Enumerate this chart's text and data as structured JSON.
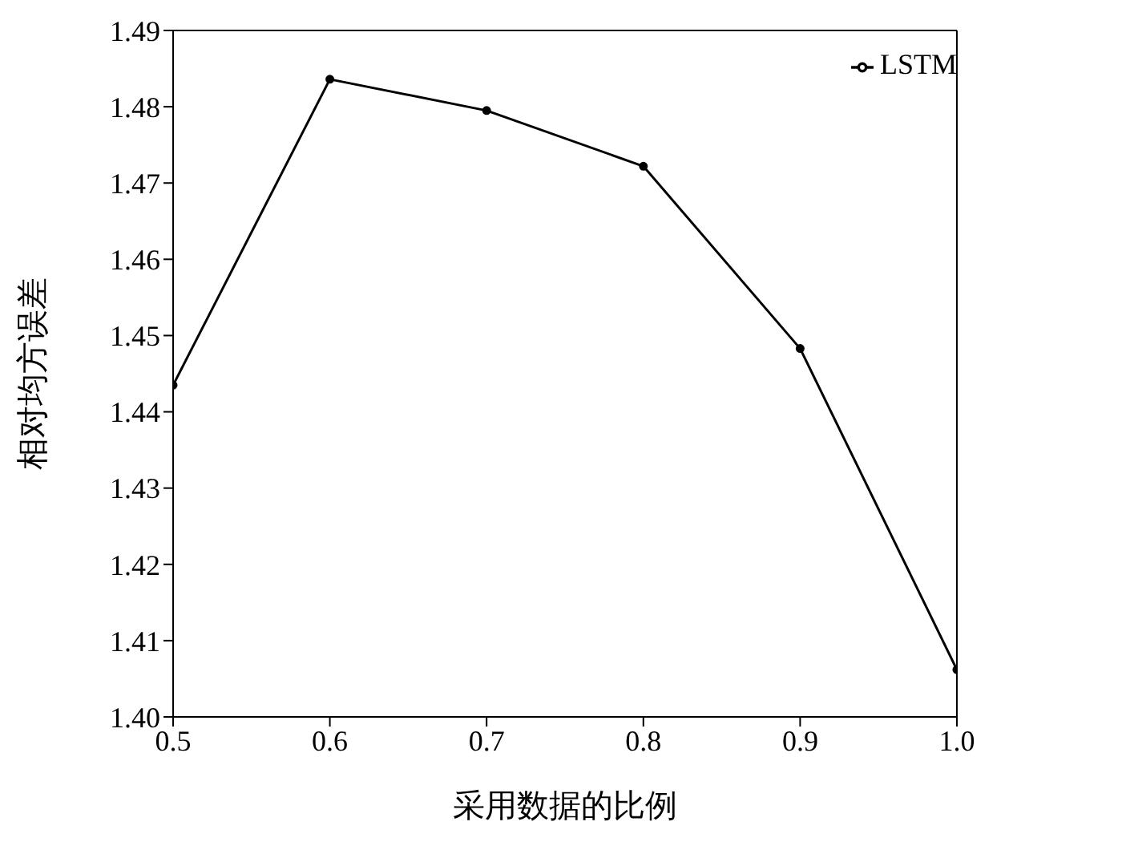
{
  "chart_data": {
    "type": "line",
    "xlabel": "采用数据的比例",
    "ylabel": "相对均方误差",
    "x": [
      0.5,
      0.6,
      0.7,
      0.8,
      0.9,
      1.0
    ],
    "series": [
      {
        "name": "LSTM",
        "color": "#000000",
        "values": [
          1.4435,
          1.4836,
          1.4795,
          1.4722,
          1.4483,
          1.4062
        ]
      }
    ],
    "xlim": [
      0.5,
      1.0
    ],
    "xticks": [
      0.5,
      0.6,
      0.7,
      0.8,
      0.9,
      {
        "value": 1.0,
        "label": "1.0"
      }
    ],
    "ylim": [
      1.4,
      1.49
    ],
    "yticks": [
      {
        "value": 1.4,
        "label": "1.40"
      },
      1.41,
      1.42,
      1.43,
      1.44,
      1.45,
      1.46,
      1.47,
      1.48,
      1.49
    ],
    "grid": false,
    "legend": "top right",
    "marker": "circle",
    "line_style": "solid"
  }
}
